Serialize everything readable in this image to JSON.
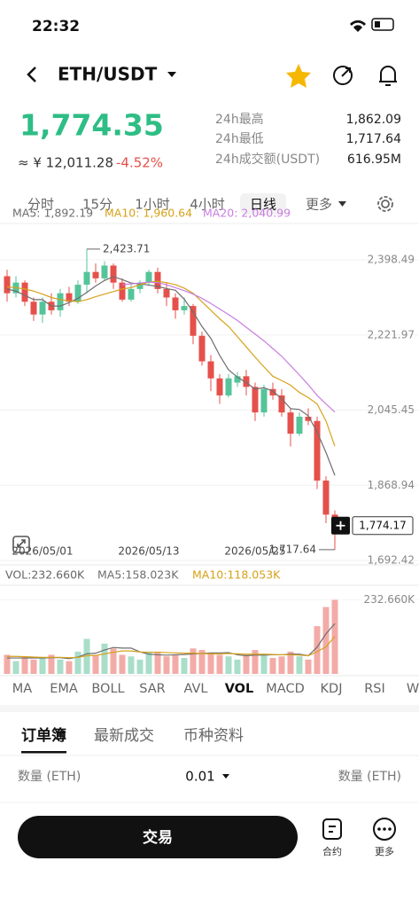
{
  "status_bar": {
    "time": "22:32"
  },
  "header": {
    "pair": "ETH/USDT"
  },
  "ticker": {
    "price": "1,774.35",
    "cny": "≈ ¥ 12,011.28",
    "change": "-4.52%"
  },
  "stats": [
    {
      "label": "24h最高",
      "value": "1,862.09"
    },
    {
      "label": "24h最低",
      "value": "1,717.64"
    },
    {
      "label": "24h成交额(USDT)",
      "value": "616.95M"
    }
  ],
  "timeframes": {
    "items": [
      "分时",
      "15分",
      "1小时",
      "4小时",
      "日线",
      "更多"
    ],
    "active": 4
  },
  "chart_data": [
    {
      "type": "candlestick",
      "categories": [
        null,
        null,
        null,
        null,
        "2026/05/01",
        null,
        null,
        null,
        null,
        null,
        null,
        null,
        null,
        null,
        null,
        null,
        "2026/05/13",
        null,
        null,
        null,
        null,
        null,
        null,
        null,
        null,
        null,
        null,
        null,
        "2026/05/25",
        null,
        null,
        null,
        null,
        null,
        null,
        null,
        null,
        null
      ],
      "open": [
        2360,
        2320,
        2345,
        2300,
        2270,
        2300,
        2280,
        2320,
        2300,
        2340,
        2370,
        2355,
        2385,
        2345,
        2305,
        2330,
        2345,
        2370,
        2330,
        2310,
        2280,
        2290,
        2220,
        2160,
        2120,
        2080,
        2110,
        2125,
        2100,
        2040,
        2095,
        2080,
        2040,
        1990,
        2030,
        2020,
        1880,
        1800
      ],
      "high": [
        2375,
        2360,
        2350,
        2310,
        2310,
        2320,
        2330,
        2335,
        2350,
        2423.71,
        2390,
        2395,
        2390,
        2355,
        2340,
        2350,
        2375,
        2380,
        2345,
        2320,
        2310,
        2295,
        2230,
        2175,
        2130,
        2130,
        2135,
        2140,
        2110,
        2105,
        2110,
        2095,
        2050,
        2040,
        2050,
        2030,
        1890,
        1810
      ],
      "low": [
        2300,
        2310,
        2290,
        2255,
        2250,
        2270,
        2265,
        2290,
        2295,
        2320,
        2345,
        2350,
        2330,
        2300,
        2300,
        2320,
        2340,
        2320,
        2290,
        2260,
        2270,
        2200,
        2150,
        2090,
        2060,
        2075,
        2100,
        2080,
        2020,
        2030,
        2070,
        2030,
        1960,
        1985,
        2010,
        1860,
        1780,
        1717.64
      ],
      "close": [
        2320,
        2345,
        2300,
        2270,
        2300,
        2280,
        2320,
        2300,
        2340,
        2370,
        2355,
        2385,
        2345,
        2305,
        2330,
        2345,
        2370,
        2330,
        2310,
        2280,
        2290,
        2220,
        2160,
        2120,
        2080,
        2120,
        2125,
        2100,
        2040,
        2095,
        2080,
        2040,
        1990,
        2030,
        2020,
        1880,
        1800,
        1774.17
      ],
      "colors": {
        "up": "#55c49a",
        "down": "#e5504b"
      },
      "ma": [
        {
          "name": "MA5: 1,892.19",
          "color": "#6e6e6e",
          "values": [
            2330,
            2325,
            2315,
            2305,
            2305,
            2290,
            2290,
            2298,
            2308,
            2322,
            2337,
            2350,
            2359,
            2352,
            2344,
            2342,
            2339,
            2336,
            2331,
            2327,
            2306,
            2276,
            2242,
            2214,
            2174,
            2140,
            2123,
            2110,
            2095,
            2098,
            2090,
            2072,
            2049,
            2047,
            2032,
            1994,
            1946,
            1892.19
          ]
        },
        {
          "name": "MA10: 1,960.64",
          "color": "#d6a21a",
          "values": [
            2335,
            2333,
            2330,
            2325,
            2318,
            2310,
            2305,
            2302,
            2300,
            2305,
            2312,
            2318,
            2324,
            2330,
            2333,
            2340,
            2346,
            2348,
            2345,
            2340,
            2332,
            2320,
            2300,
            2280,
            2260,
            2242,
            2218,
            2194,
            2170,
            2147,
            2125,
            2115,
            2104,
            2087,
            2075,
            2060,
            2020,
            1960.64
          ]
        },
        {
          "name": "MA20: 2,040.99",
          "color": "#c97ee0",
          "values": [
            null,
            null,
            null,
            null,
            null,
            null,
            null,
            null,
            null,
            null,
            null,
            null,
            null,
            2340,
            2342,
            2344,
            2346,
            2345,
            2340,
            2333,
            2326,
            2318,
            2308,
            2296,
            2283,
            2270,
            2256,
            2240,
            2224,
            2208,
            2190,
            2172,
            2150,
            2128,
            2105,
            2080,
            2060,
            2040.99
          ]
        }
      ],
      "ylim": [
        1675.8,
        2483.9
      ],
      "yticks": [
        {
          "value": 2398.49,
          "label": "2,398.49"
        },
        {
          "value": 2221.97,
          "label": "2,221.97"
        },
        {
          "value": 2045.45,
          "label": "2,045.45"
        },
        {
          "value": 1868.94,
          "label": "1,868.94"
        },
        {
          "value": 1692.42,
          "label": "1,692.42"
        }
      ],
      "grid": true,
      "annotations": [
        {
          "value": 2423.71,
          "label": "2,423.71"
        },
        {
          "value": 1717.64,
          "label": "1,717.64"
        }
      ],
      "last_price": {
        "value": 1774.17,
        "label": "1,774.17"
      }
    },
    {
      "type": "bar",
      "title": "VOL:232.660K",
      "values": [
        60,
        40,
        55,
        45,
        50,
        60,
        45,
        40,
        70,
        110,
        60,
        95,
        80,
        60,
        55,
        45,
        70,
        70,
        55,
        60,
        50,
        80,
        75,
        65,
        60,
        55,
        45,
        60,
        75,
        60,
        50,
        55,
        70,
        55,
        45,
        150,
        210,
        232.66
      ],
      "colors": {
        "up": "#a9dec9",
        "down": "#f3aba7"
      },
      "ma": [
        {
          "name": "MA5:158.023K",
          "color": "#6e6e6e",
          "values": [
            50,
            50,
            50,
            50,
            50,
            51,
            51,
            48,
            53,
            63,
            65,
            75,
            83,
            81,
            81,
            69,
            62,
            60,
            59,
            60,
            61,
            63,
            64,
            66,
            66,
            67,
            60,
            57,
            59,
            59,
            60,
            60,
            62,
            62,
            57,
            84,
            126,
            158.023
          ]
        },
        {
          "name": "MA10:118.053K",
          "color": "#d6a21a",
          "values": [
            55,
            55,
            54,
            53,
            52,
            52,
            52,
            51,
            52,
            57,
            58,
            63,
            68,
            72,
            72,
            69,
            68,
            68,
            67,
            66,
            65,
            65,
            64,
            63,
            63,
            64,
            63,
            62,
            62,
            62,
            61,
            60,
            60,
            59,
            57,
            70,
            85,
            118.053
          ]
        }
      ],
      "ylim": [
        0,
        245
      ],
      "yticks": [
        {
          "value": 232.66,
          "label": "232.660K"
        }
      ]
    }
  ],
  "indicators": {
    "items": [
      "MA",
      "EMA",
      "BOLL",
      "SAR",
      "AVL",
      "VOL",
      "MACD",
      "KDJ",
      "RSI",
      "W"
    ],
    "active": 5
  },
  "book_tabs": {
    "items": [
      "订单簿",
      "最新成交",
      "币种资料"
    ],
    "active": 0
  },
  "order_header": [
    "数量 (ETH)",
    "0.01",
    "数量 (ETH)"
  ],
  "footer": {
    "trade": "交易",
    "contract": "合约",
    "more": "更多"
  }
}
